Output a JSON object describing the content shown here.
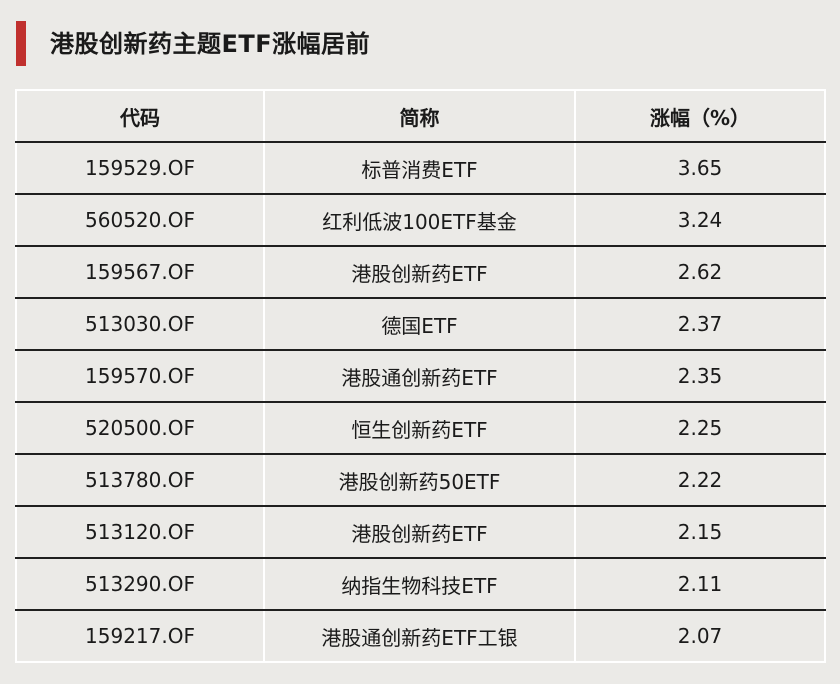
{
  "title": "港股创新药主题ETF涨幅居前",
  "accent_color": "#c0302e",
  "headers": [
    "代码",
    "简称",
    "涨幅（%）"
  ],
  "rows": [
    [
      "159529.OF",
      "标普消费ETF",
      "3.65"
    ],
    [
      "560520.OF",
      "红利低波100ETF基金",
      "3.24"
    ],
    [
      "159567.OF",
      "港股创新药ETF",
      "2.62"
    ],
    [
      "513030.OF",
      "德国ETF",
      "2.37"
    ],
    [
      "159570.OF",
      "港股通创新药ETF",
      "2.35"
    ],
    [
      "520500.OF",
      "恒生创新药ETF",
      "2.25"
    ],
    [
      "513780.OF",
      "港股创新药50ETF",
      "2.22"
    ],
    [
      "513120.OF",
      "港股创新药ETF",
      "2.15"
    ],
    [
      "513290.OF",
      "纳指生物科技ETF",
      "2.11"
    ],
    [
      "159217.OF",
      "港股通创新药ETF工银",
      "2.07"
    ]
  ]
}
